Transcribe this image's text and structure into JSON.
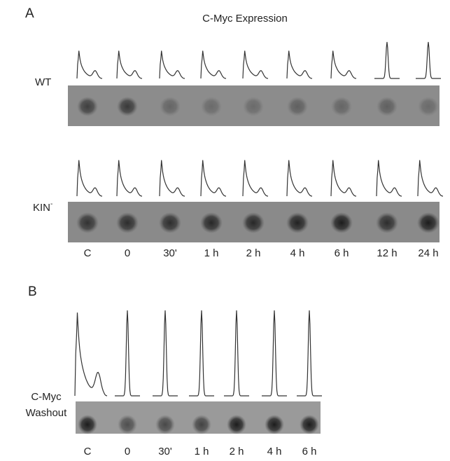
{
  "panel_a": {
    "label": "A",
    "title": "C-Myc Expression",
    "rows": [
      {
        "label": "WT"
      },
      {
        "label": "KIN",
        "superscript": "-"
      }
    ],
    "lanes": [
      "C",
      "0",
      "30'",
      "1 h",
      "2 h",
      "4 h",
      "6 h",
      "12 h",
      "24 h"
    ]
  },
  "panel_b": {
    "label": "B",
    "row_label": [
      "C-Myc",
      "Washout"
    ],
    "lanes": [
      "C",
      "0",
      "30'",
      "1 h",
      "2 h",
      "4 h",
      "6 h"
    ]
  }
}
